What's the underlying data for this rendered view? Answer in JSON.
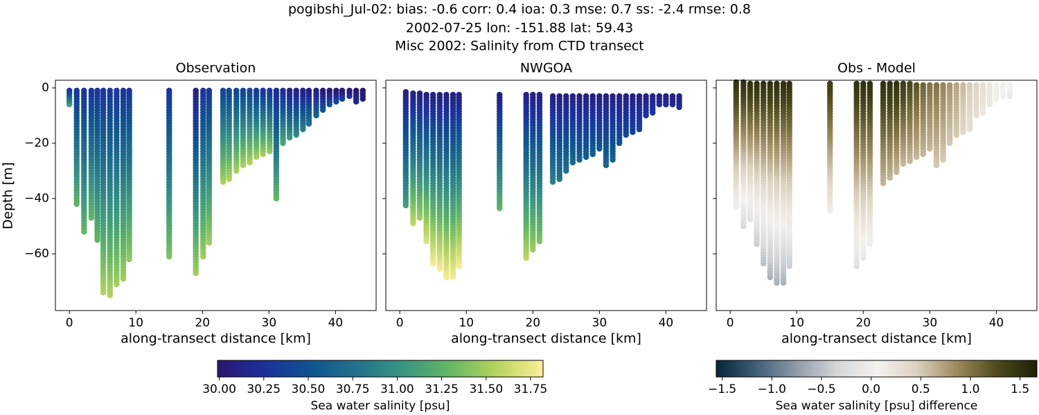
{
  "suptitle": [
    "pogibshi_Jul-02: bias: -0.6  corr: 0.4  ioa: 0.3  mse: 0.7  ss: -2.4  rmse: 0.8",
    "2002-07-25 lon: -151.88 lat: 59.43",
    "Misc 2002: Salinity from CTD transect"
  ],
  "chart_data": [
    {
      "type": "scatter",
      "title": "Observation",
      "xlabel": "along-transect distance [km]",
      "ylabel": "Depth [m]",
      "xlim": [
        -2.1,
        46.1
      ],
      "ylim": [
        -80.5,
        2.75
      ],
      "xticks": [
        0,
        10,
        20,
        30,
        40
      ],
      "yticks": [
        0,
        {
          "value": -20,
          "label": "−20"
        },
        {
          "value": -40,
          "label": "−40"
        },
        {
          "value": -60,
          "label": "−60"
        }
      ],
      "show_ytick_labels": true,
      "clim": [
        29.99,
        31.82
      ],
      "colormap": [
        "#2a186c",
        "#1c2f9c",
        "#0f5490",
        "#22728b",
        "#3a9583",
        "#64b764",
        "#b7d45f",
        "#fdef9a"
      ],
      "casts": {
        "x": [
          0,
          1.1,
          2.2,
          3.3,
          4.2,
          5.1,
          6.1,
          7.1,
          8.1,
          9.0,
          15.0,
          19.0,
          20.1,
          21.0,
          23.1,
          24.0,
          25.1,
          26.1,
          27.1,
          28.1,
          29.1,
          30.1,
          31.1,
          32.1,
          33.1,
          34.1,
          35.1,
          36.0,
          37.1,
          38.1,
          39.1,
          40.1,
          41.0,
          42.1,
          43.1,
          44.1
        ],
        "depth_top": [
          -1,
          -1,
          -1,
          -1,
          -1,
          -1,
          -1,
          -1,
          -1,
          -1,
          -1,
          -1,
          -1,
          -1,
          -1,
          -1,
          -1,
          -1,
          -1,
          -1,
          -1,
          -1,
          -1,
          -1,
          -1,
          -1,
          -1,
          -1,
          -1,
          -1,
          -1,
          -1,
          -1,
          -1,
          -1,
          -1
        ],
        "depth_bottom": [
          -7,
          -43,
          -53,
          -48,
          -56,
          -74.5,
          -76,
          -71.5,
          -69.5,
          -62.5,
          -62,
          -67.5,
          -62,
          -56.5,
          -35,
          -33.5,
          -31,
          -29,
          -27.5,
          -26,
          -25,
          -24,
          -40.5,
          -21,
          -19,
          -18,
          -16,
          -14,
          -11,
          -9,
          -7,
          -6,
          -4.5,
          -4,
          -6,
          -5
        ],
        "value_top": [
          30.3,
          30.3,
          30.3,
          30.3,
          30.3,
          30.3,
          30.3,
          30.3,
          30.3,
          30.3,
          30.3,
          30.1,
          30.3,
          30.3,
          30.4,
          30.4,
          30.4,
          30.4,
          30.4,
          30.3,
          30.3,
          30.3,
          30.2,
          30.2,
          30.1,
          30.1,
          30.1,
          30.1,
          30.1,
          30.0,
          30.0,
          30.0,
          30.0,
          30.0,
          30.0,
          30.0
        ],
        "value_bottom": [
          31.2,
          31.3,
          31.3,
          31.3,
          31.3,
          31.55,
          31.55,
          31.5,
          31.5,
          31.45,
          31.4,
          31.5,
          31.5,
          31.5,
          31.55,
          31.55,
          31.55,
          31.55,
          31.55,
          31.55,
          31.55,
          31.5,
          31.3,
          31.2,
          31.1,
          31.0,
          30.9,
          30.8,
          30.7,
          30.6,
          30.55,
          30.5,
          30.4,
          30.3,
          30.2,
          30.1
        ]
      },
      "colorbar": {
        "label": "Sea water salinity [psu]",
        "ticks": [
          {
            "value": 30.0,
            "label": "30.00"
          },
          {
            "value": 30.25,
            "label": "30.25"
          },
          {
            "value": 30.5,
            "label": "30.50"
          },
          {
            "value": 30.75,
            "label": "30.75"
          },
          {
            "value": 31.0,
            "label": "31.00"
          },
          {
            "value": 31.25,
            "label": "31.25"
          },
          {
            "value": 31.5,
            "label": "31.50"
          },
          {
            "value": 31.75,
            "label": "31.75"
          }
        ]
      }
    },
    {
      "type": "scatter",
      "title": "NWGOA",
      "xlabel": "along-transect distance [km]",
      "xlim": [
        -2.1,
        46.1
      ],
      "ylim": [
        -80.5,
        2.75
      ],
      "xticks": [
        0,
        10,
        20,
        30,
        40
      ],
      "yticks": [
        0,
        -20,
        -40,
        -60
      ],
      "show_ytick_labels": false,
      "clim": [
        29.99,
        31.82
      ],
      "colormap": [
        "#2a186c",
        "#1c2f9c",
        "#0f5490",
        "#22728b",
        "#3a9583",
        "#64b764",
        "#b7d45f",
        "#fdef9a"
      ],
      "casts": {
        "x": [
          0.9,
          2.0,
          3.0,
          4.0,
          5.0,
          6.0,
          7.0,
          8.0,
          8.9,
          15.0,
          19.0,
          20.0,
          21.0,
          23.0,
          24.0,
          25.0,
          26.0,
          27.0,
          28.0,
          29.0,
          30.0,
          31.0,
          32.0,
          33.0,
          34.0,
          35.0,
          36.0,
          37.0,
          38.0,
          39.0,
          40.0,
          41.0,
          42.0
        ],
        "depth_top": [
          -1.5,
          -2,
          -2,
          -2.5,
          -2.5,
          -2.5,
          -2.5,
          -2.5,
          -2.5,
          -2.5,
          -2.5,
          -2.5,
          -2.5,
          -3,
          -3,
          -3,
          -3,
          -3,
          -3,
          -3,
          -3,
          -3,
          -3,
          -3,
          -3,
          -3,
          -3,
          -3,
          -3,
          -3,
          -3,
          -3,
          -3
        ],
        "depth_bottom": [
          -43,
          -49.5,
          -48,
          -56,
          -64,
          -66,
          -69,
          -69,
          -65,
          -44.5,
          -62.5,
          -59.5,
          -56,
          -35,
          -34,
          -31,
          -28,
          -27,
          -25.5,
          -25,
          -23,
          -29,
          -27,
          -21,
          -18,
          -17,
          -16,
          -11,
          -9.5,
          -7,
          -7,
          -7,
          -7.5
        ],
        "value_top": [
          30.1,
          30.1,
          30.1,
          30.1,
          30.1,
          30.1,
          30.1,
          30.1,
          30.1,
          30.1,
          30.1,
          30.1,
          30.1,
          30.1,
          30.1,
          30.1,
          30.1,
          30.1,
          30.1,
          30.1,
          30.1,
          30.1,
          30.1,
          30.1,
          30.1,
          30.1,
          30.1,
          30.1,
          30.1,
          30.1,
          30.1,
          30.1,
          30.1
        ],
        "value_bottom": [
          31.1,
          31.6,
          31.5,
          31.7,
          31.8,
          31.8,
          31.8,
          31.8,
          31.8,
          31.3,
          31.6,
          31.5,
          31.4,
          30.9,
          30.8,
          30.75,
          30.7,
          30.65,
          30.6,
          30.6,
          30.55,
          30.7,
          30.65,
          30.5,
          30.45,
          30.4,
          30.4,
          30.3,
          30.3,
          30.25,
          30.2,
          30.2,
          30.2
        ]
      }
    },
    {
      "type": "scatter",
      "title": "Obs - Model",
      "xlabel": "along-transect distance [km]",
      "xlim": [
        -2.1,
        46.1
      ],
      "ylim": [
        -80.5,
        2.75
      ],
      "xticks": [
        0,
        10,
        20,
        30,
        40
      ],
      "yticks": [
        0,
        -20,
        -40,
        -60
      ],
      "show_ytick_labels": false,
      "clim": [
        -1.56,
        1.67
      ],
      "colormap": [
        "#07253a",
        "#3f5f78",
        "#8f9ba7",
        "#d3d6d9",
        "#f5f2ef",
        "#dcd2c0",
        "#9c8a5c",
        "#4d4a1c",
        "#1c1f05"
      ],
      "casts": {
        "x": [
          0.9,
          2.0,
          3.0,
          4.0,
          5.0,
          6.0,
          7.0,
          8.0,
          8.9,
          15.0,
          19.0,
          20.0,
          21.0,
          23.0,
          24.0,
          25.0,
          26.0,
          27.0,
          28.0,
          29.0,
          30.0,
          31.0,
          32.0,
          33.0,
          34.0,
          35.0,
          36.0,
          37.0,
          38.0,
          39.0,
          40.0,
          41.0,
          42.0
        ],
        "depth_top": [
          2,
          2,
          1.5,
          1.5,
          1.5,
          1.5,
          1.5,
          1.5,
          1.5,
          1.5,
          1.5,
          1.5,
          1.5,
          1.5,
          1.5,
          1.5,
          1.5,
          1.5,
          1,
          1,
          1,
          1,
          1,
          1,
          1,
          1,
          1,
          1,
          1,
          1,
          1,
          1,
          1
        ],
        "depth_bottom": [
          -44,
          -50.5,
          -48,
          -57,
          -64,
          -69,
          -71,
          -71,
          -65,
          -45,
          -65,
          -62,
          -57,
          -35,
          -33.5,
          -31,
          -28,
          -27,
          -25.5,
          -25,
          -23,
          -29,
          -27,
          -21,
          -18,
          -17,
          -16,
          -11,
          -9.5,
          -7,
          -5,
          -4,
          -4
        ],
        "value_top": [
          1.5,
          1.5,
          1.5,
          1.5,
          1.5,
          1.5,
          1.5,
          1.5,
          1.5,
          1.4,
          1.5,
          1.5,
          1.5,
          1.5,
          1.5,
          1.5,
          1.4,
          1.3,
          1.2,
          1.1,
          1.0,
          1.0,
          0.9,
          0.8,
          0.7,
          0.6,
          0.5,
          0.4,
          0.3,
          0.2,
          0.1,
          0.1,
          0.1
        ],
        "value_bottom": [
          0.0,
          -0.3,
          -0.2,
          -0.4,
          -0.5,
          -0.6,
          -0.6,
          -0.6,
          -0.4,
          0.1,
          -0.2,
          -0.1,
          0.0,
          0.6,
          0.6,
          0.6,
          0.6,
          0.6,
          0.6,
          0.6,
          0.6,
          0.5,
          0.5,
          0.5,
          0.5,
          0.4,
          0.3,
          0.3,
          0.2,
          0.2,
          0.1,
          0.0,
          -0.1
        ]
      },
      "colorbar": {
        "label": "Sea water salinity [psu] difference",
        "ticks": [
          {
            "value": -1.5,
            "label": "−1.5"
          },
          {
            "value": -1.0,
            "label": "−1.0"
          },
          {
            "value": -0.5,
            "label": "−0.5"
          },
          {
            "value": 0.0,
            "label": "0.0"
          },
          {
            "value": 0.5,
            "label": "0.5"
          },
          {
            "value": 1.0,
            "label": "1.0"
          },
          {
            "value": 1.5,
            "label": "1.5"
          }
        ]
      }
    }
  ]
}
